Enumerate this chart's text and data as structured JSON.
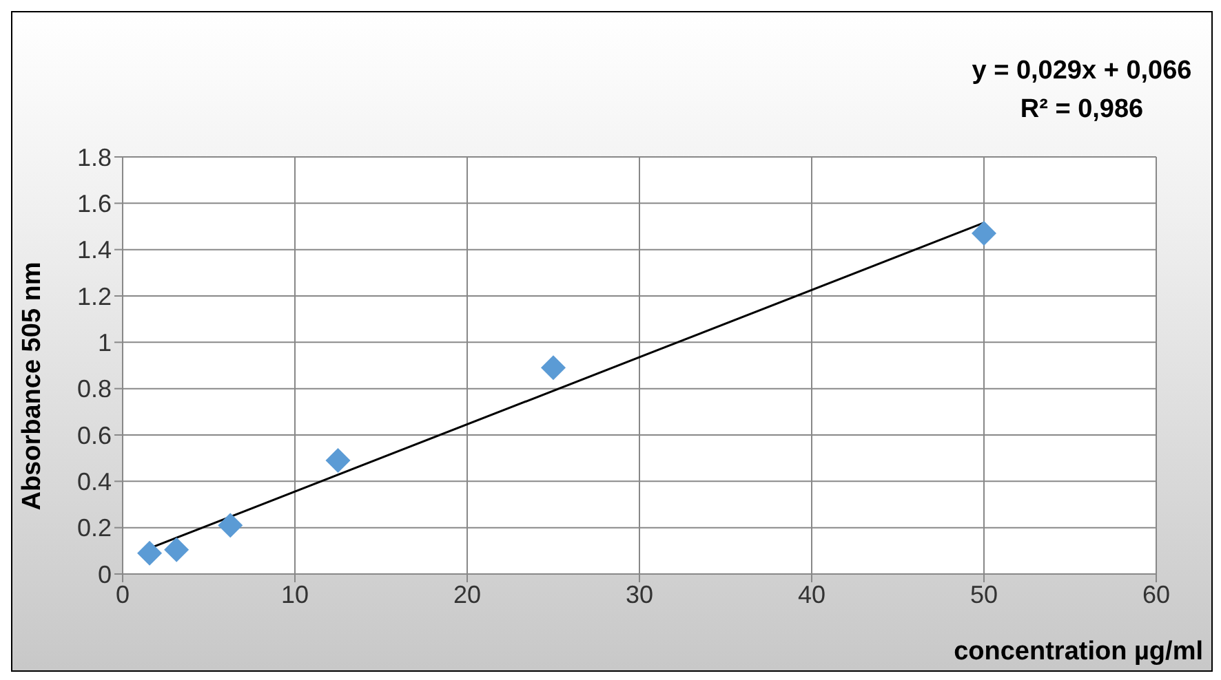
{
  "chart_data": {
    "type": "scatter",
    "xlabel": "concentration µg/ml",
    "ylabel": "Absorbance 505 nm",
    "annotations": [
      "y = 0,029x + 0,066",
      "R² = 0,986"
    ],
    "x": [
      1.5625,
      3.125,
      6.25,
      12.5,
      25,
      50
    ],
    "series": [
      {
        "color": "#5b9bd5",
        "marker": "diamond",
        "values": [
          0.09,
          0.105,
          0.21,
          0.49,
          0.89,
          1.47
        ]
      },
      {
        "type": "line",
        "color": "#000000",
        "marker": "none",
        "x": [
          1.5625,
          50
        ],
        "values": [
          0.111,
          1.516
        ]
      }
    ],
    "xlim": [
      0,
      60
    ],
    "xticks": [
      0,
      10,
      20,
      30,
      40,
      50,
      60
    ],
    "ylim": [
      0,
      1.8
    ],
    "yticks": [
      0,
      0.2,
      0.4,
      0.6,
      0.8,
      1,
      1.2,
      1.4,
      1.6,
      1.8
    ],
    "grid": true
  }
}
